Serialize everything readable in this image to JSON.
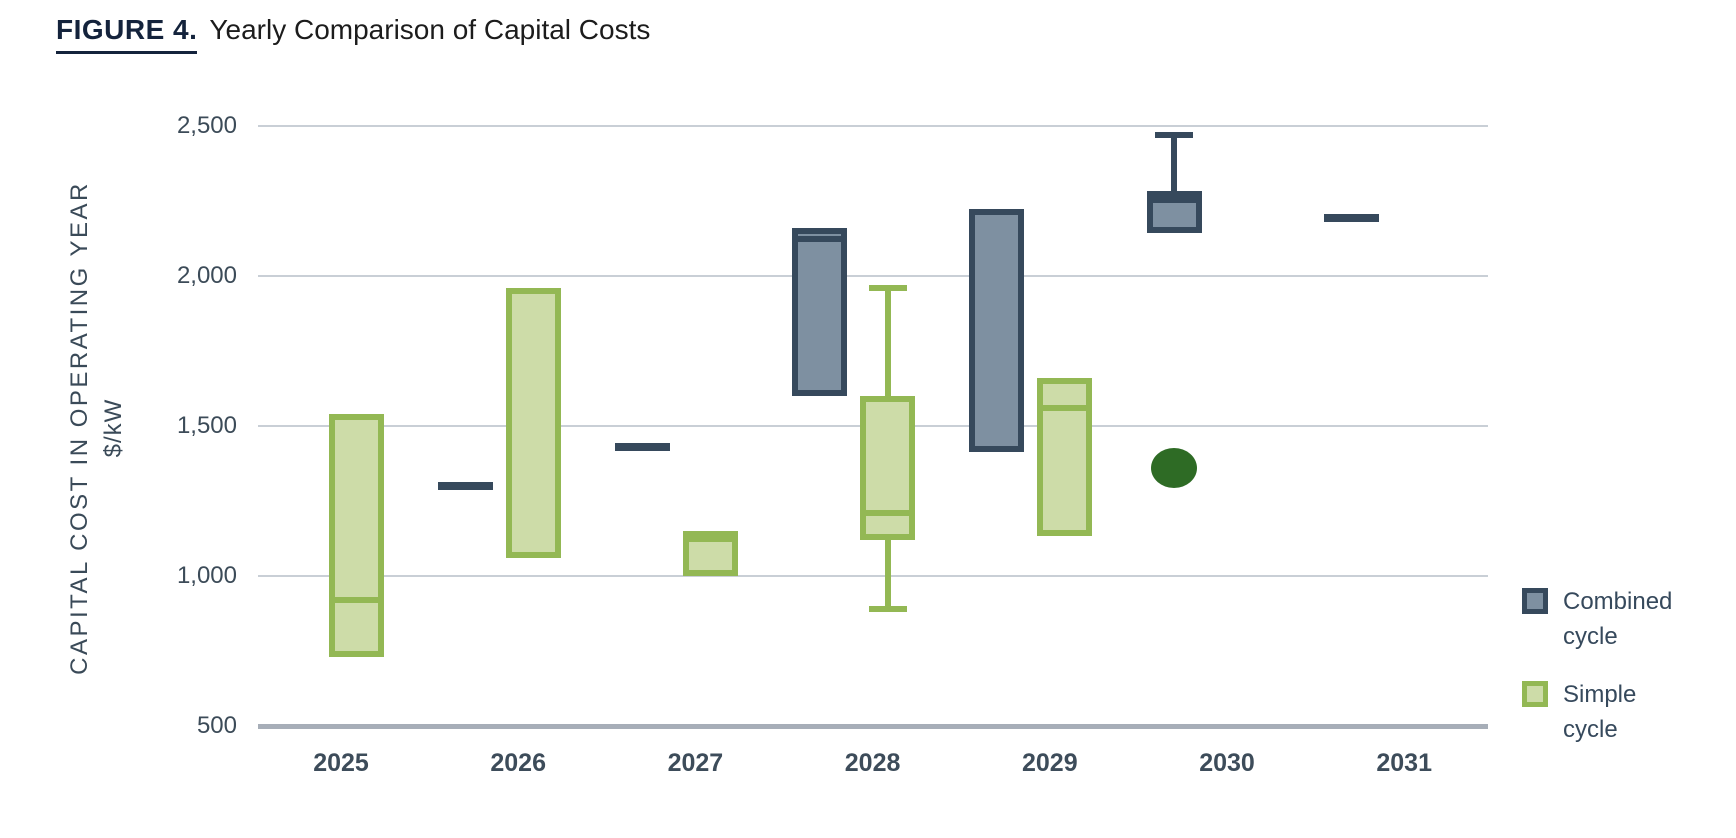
{
  "title": {
    "figure_label": "FIGURE 4.",
    "text": "Yearly Comparison of Capital Costs"
  },
  "legend": {
    "combined": {
      "line1": "Combined",
      "line2": "cycle"
    },
    "simple": {
      "line1": "Simple",
      "line2": "cycle"
    }
  },
  "chart_data": {
    "type": "box",
    "title": "Yearly Comparison of Capital Costs",
    "ylabel": "CAPITAL COST IN OPERATING YEAR",
    "ylabel_units": "$/kW",
    "ylim": [
      500,
      2500
    ],
    "grid": true,
    "legend_position": "right",
    "y_ticks": [
      {
        "value": 2500,
        "label": "2,500"
      },
      {
        "value": 2000,
        "label": "2,000"
      },
      {
        "value": 1500,
        "label": "1,500"
      },
      {
        "value": 1000,
        "label": "1,000"
      },
      {
        "value": 500,
        "label": "500"
      }
    ],
    "categories": [
      "2025",
      "2026",
      "2027",
      "2028",
      "2029",
      "2030",
      "2031"
    ],
    "series_styles": {
      "combined": {
        "name": "Combined cycle",
        "fill": "#7E90A1",
        "border": "#36495C"
      },
      "simple": {
        "name": "Simple cycle",
        "fill": "#CDDCA8",
        "border": "#93B854"
      },
      "dot_color": "#2E6B25"
    },
    "items": [
      {
        "year": "2025",
        "series": "simple",
        "slot": "right",
        "type": "box",
        "low": 730,
        "median": 920,
        "high": 1540
      },
      {
        "year": "2026",
        "series": "combined",
        "slot": "left",
        "type": "dash",
        "value": 1300
      },
      {
        "year": "2026",
        "series": "simple",
        "slot": "right",
        "type": "box",
        "low": 1060,
        "high": 1960
      },
      {
        "year": "2027",
        "series": "combined",
        "slot": "left",
        "type": "dash",
        "value": 1430
      },
      {
        "year": "2027",
        "series": "simple",
        "slot": "right",
        "type": "box",
        "low": 1000,
        "median": 1125,
        "high": 1150
      },
      {
        "year": "2028",
        "series": "combined",
        "slot": "left",
        "type": "box",
        "low": 1600,
        "median": 2125,
        "high": 2160
      },
      {
        "year": "2028",
        "series": "simple",
        "slot": "right",
        "type": "box",
        "whisker_low": 890,
        "low": 1120,
        "median": 1210,
        "high": 1600,
        "whisker_high": 1960
      },
      {
        "year": "2029",
        "series": "combined",
        "slot": "left",
        "type": "box",
        "low": 1415,
        "high": 2225
      },
      {
        "year": "2029",
        "series": "simple",
        "slot": "right",
        "type": "box",
        "low": 1135,
        "median": 1560,
        "high": 1660
      },
      {
        "year": "2030",
        "series": "combined",
        "slot": "left",
        "type": "box",
        "low": 2145,
        "median": 2255,
        "high": 2285,
        "whisker_high": 2470
      },
      {
        "year": "2030",
        "series": "simple",
        "slot": "left",
        "type": "dot",
        "value": 1360
      },
      {
        "year": "2031",
        "series": "combined",
        "slot": "left",
        "type": "dash",
        "value": 2195
      }
    ]
  },
  "colors": {
    "gridline": "#C9CFD6",
    "axisline": "#A7AEB8",
    "tick_text": "#3C4B58",
    "title_navy": "#14233C"
  }
}
